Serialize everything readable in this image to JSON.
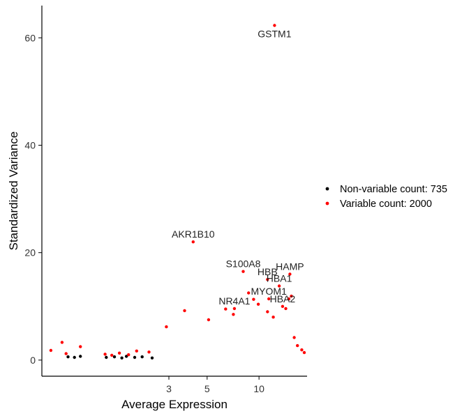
{
  "chart_data": {
    "type": "scatter",
    "xlabel": "Average Expression",
    "ylabel": "Standardized Variance",
    "x_scale": "log",
    "xlim": [
      0.55,
      19
    ],
    "ylim": [
      -3,
      66
    ],
    "x_ticks": [
      3,
      5,
      10
    ],
    "y_ticks": [
      0,
      20,
      40,
      60
    ],
    "grid": false,
    "legend_position": "right",
    "colors": {
      "non_variable": "#000000",
      "variable": "#ff0000"
    },
    "series": [
      {
        "key": "non_variable",
        "name": "Non-variable count: 735",
        "color": "#000000",
        "points": [
          [
            0.78,
            0.6
          ],
          [
            0.85,
            0.5
          ],
          [
            0.92,
            0.7
          ],
          [
            1.3,
            0.5
          ],
          [
            1.45,
            0.6
          ],
          [
            1.6,
            0.4
          ],
          [
            1.7,
            0.7
          ],
          [
            1.9,
            0.5
          ],
          [
            2.1,
            0.6
          ],
          [
            2.4,
            0.4
          ]
        ]
      },
      {
        "key": "variable",
        "name": "Variable count: 2000",
        "color": "#ff0000",
        "points": [
          [
            0.62,
            1.8
          ],
          [
            0.72,
            3.3
          ],
          [
            0.76,
            1.2
          ],
          [
            0.92,
            2.5
          ],
          [
            1.28,
            1.1
          ],
          [
            1.4,
            0.9
          ],
          [
            1.55,
            1.3
          ],
          [
            1.75,
            1.0
          ],
          [
            1.95,
            1.7
          ],
          [
            2.3,
            1.5
          ],
          [
            2.9,
            6.2
          ],
          [
            3.7,
            9.2
          ],
          [
            5.1,
            7.5
          ],
          [
            6.4,
            9.5
          ],
          [
            7.1,
            8.5
          ],
          [
            8.7,
            12.5
          ],
          [
            9.3,
            11.3
          ],
          [
            9.9,
            10.4
          ],
          [
            11.2,
            9.0
          ],
          [
            12.1,
            8.0
          ],
          [
            14.3,
            9.6
          ],
          [
            14.9,
            11.4
          ],
          [
            15.4,
            11.9
          ],
          [
            16.0,
            4.2
          ],
          [
            16.7,
            2.7
          ],
          [
            17.7,
            1.9
          ],
          [
            18.3,
            1.4
          ]
        ]
      }
    ],
    "labeled_genes": [
      {
        "label": "GSTM1",
        "x": 12.3,
        "y": 62.3
      },
      {
        "label": "AKR1B10",
        "x": 4.15,
        "y": 22.0
      },
      {
        "label": "S100A8",
        "x": 8.1,
        "y": 16.5
      },
      {
        "label": "HBB",
        "x": 11.2,
        "y": 15.0
      },
      {
        "label": "HAMP",
        "x": 15.1,
        "y": 16.0
      },
      {
        "label": "HBA1",
        "x": 13.1,
        "y": 13.8
      },
      {
        "label": "NR4A1",
        "x": 7.2,
        "y": 9.6
      },
      {
        "label": "MYOM1",
        "x": 11.4,
        "y": 11.4
      },
      {
        "label": "HBA2",
        "x": 13.7,
        "y": 10.0
      }
    ]
  }
}
